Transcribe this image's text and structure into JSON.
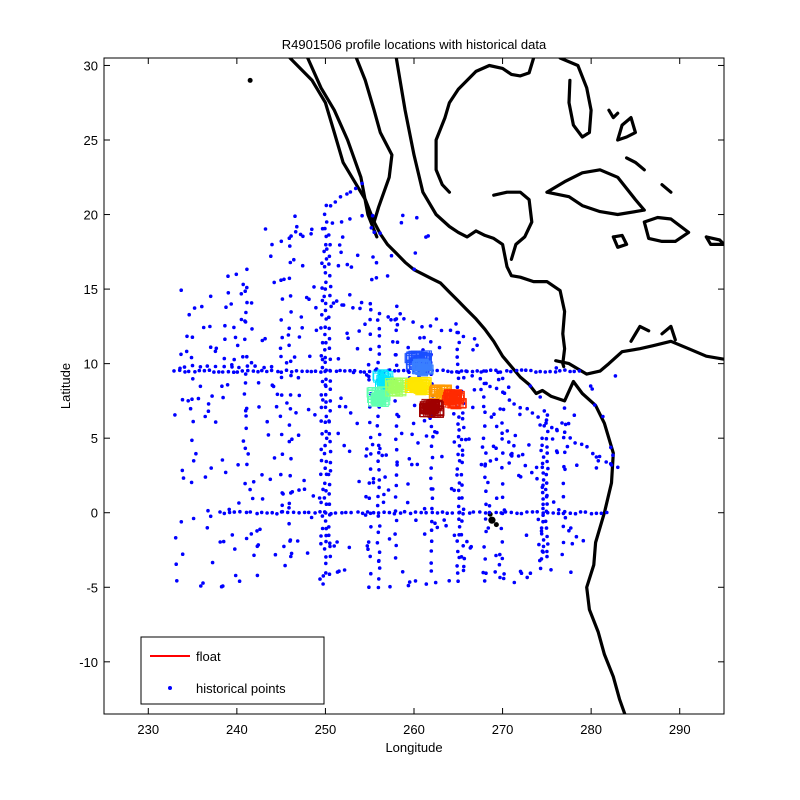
{
  "chart_data": {
    "type": "scatter",
    "title": "R4901506 profile locations with historical data",
    "xlabel": "Longitude",
    "ylabel": "Latitude",
    "xlim": [
      225,
      295
    ],
    "ylim": [
      -13.5,
      30.5
    ],
    "xticks": [
      230,
      240,
      250,
      260,
      270,
      280,
      290
    ],
    "yticks": [
      -10,
      -5,
      0,
      5,
      10,
      15,
      20,
      25,
      30
    ],
    "grid": false,
    "legend": {
      "placement": "bottom-left",
      "entries": [
        {
          "label": "float",
          "marker": "line",
          "color": "#ff0000"
        },
        {
          "label": "historical points",
          "marker": "dot",
          "color": "#0000ff"
        }
      ]
    },
    "coastline_color": "#000000",
    "historical_color": "#0000ff",
    "series": [
      {
        "kind": "historical",
        "color": "#0000ff",
        "transects": [
          {
            "lon": 250,
            "lat_from": -4,
            "lat_to": 20,
            "step": 0.5
          },
          {
            "lon": 250.5,
            "lat_from": -3,
            "lat_to": 19,
            "step": 0.7
          },
          {
            "lon": 249.6,
            "lat_from": -2,
            "lat_to": 16,
            "step": 0.9
          },
          {
            "lon": 256,
            "lat_from": -5,
            "lat_to": 13,
            "step": 0.6
          },
          {
            "lon": 258,
            "lat_from": -3,
            "lat_to": 14,
            "step": 0.8
          },
          {
            "lon": 265,
            "lat_from": -4,
            "lat_to": 12,
            "step": 0.5
          },
          {
            "lon": 265.5,
            "lat_from": -3,
            "lat_to": 9,
            "step": 0.8
          },
          {
            "lon": 262,
            "lat_from": -4,
            "lat_to": 12,
            "step": 0.7
          },
          {
            "lon": 274.5,
            "lat_from": -3,
            "lat_to": 5,
            "step": 0.4
          },
          {
            "lon": 275,
            "lat_from": -3,
            "lat_to": 6,
            "step": 0.5
          },
          {
            "lon": 246,
            "lat_from": -3,
            "lat_to": 18,
            "step": 1.1
          },
          {
            "lon": 241,
            "lat_from": 2,
            "lat_to": 17,
            "step": 1.2
          },
          {
            "lon": 245,
            "lat_from": 0,
            "lat_to": 16,
            "step": 1.3
          },
          {
            "lon": 235,
            "lat_from": 2,
            "lat_to": 12,
            "step": 1.4
          },
          {
            "lon": 255,
            "lat_from": -5,
            "lat_to": 14,
            "step": 1.0
          },
          {
            "lon": 268,
            "lat_from": -4,
            "lat_to": 10,
            "step": 0.9
          },
          {
            "lon": 270,
            "lat_from": -3,
            "lat_to": 9,
            "step": 1.0
          },
          {
            "lon": 277,
            "lat_from": -2,
            "lat_to": 7,
            "step": 1.0
          },
          {
            "lat": 9.5,
            "lon_from": 233,
            "lon_to": 279,
            "step": 0.55
          },
          {
            "lat": 0,
            "lon_from": 238,
            "lon_to": 282,
            "step": 0.6
          },
          {
            "lat": 9.8,
            "lon_from": 234,
            "lon_to": 244,
            "step": 0.9
          }
        ],
        "diagonals": [
          {
            "from": [
              250,
              20.5
            ],
            "to": [
              254,
              22
            ],
            "n": 8
          },
          {
            "from": [
              244,
              18
            ],
            "to": [
              254,
              20
            ],
            "n": 10
          },
          {
            "from": [
              266,
              9.5
            ],
            "to": [
              283,
              3
            ],
            "n": 26
          },
          {
            "from": [
              268,
              7
            ],
            "to": [
              279,
              -2
            ],
            "n": 18
          },
          {
            "from": [
              252,
              14
            ],
            "to": [
              265,
              12
            ],
            "n": 14
          }
        ],
        "scatter_box": {
          "lon_min": 233,
          "lon_max": 283,
          "lat_min": -5,
          "lat_max": 20,
          "n": 520
        }
      },
      {
        "kind": "float",
        "name": "float",
        "color_scale": [
          "#00007f",
          "#0000ff",
          "#007fff",
          "#00ffff",
          "#7fff7f",
          "#ffff00",
          "#ff7f00",
          "#ff0000",
          "#7f0000"
        ],
        "clusters": [
          {
            "lon": 260.5,
            "lat": 10.2,
            "spread": [
              1.6,
              0.6
            ],
            "n": 40,
            "color": "#1a4fff"
          },
          {
            "lon": 261.0,
            "lat": 9.7,
            "spread": [
              1.2,
              0.5
            ],
            "n": 25,
            "color": "#3a7fff"
          },
          {
            "lon": 256.5,
            "lat": 8.8,
            "spread": [
              1.0,
              0.9
            ],
            "n": 30,
            "color": "#00e5ff"
          },
          {
            "lon": 256.0,
            "lat": 7.8,
            "spread": [
              1.3,
              0.7
            ],
            "n": 35,
            "color": "#60ffb0"
          },
          {
            "lon": 258.0,
            "lat": 8.4,
            "spread": [
              1.2,
              0.6
            ],
            "n": 25,
            "color": "#a0ff60"
          },
          {
            "lon": 260.5,
            "lat": 8.5,
            "spread": [
              1.6,
              0.5
            ],
            "n": 45,
            "color": "#ffe600"
          },
          {
            "lon": 263.0,
            "lat": 8.0,
            "spread": [
              1.2,
              0.5
            ],
            "n": 25,
            "color": "#ff9a00"
          },
          {
            "lon": 264.5,
            "lat": 7.6,
            "spread": [
              1.4,
              0.6
            ],
            "n": 40,
            "color": "#ff2a00"
          },
          {
            "lon": 262.0,
            "lat": 7.0,
            "spread": [
              1.4,
              0.5
            ],
            "n": 45,
            "color": "#a00000"
          }
        ]
      }
    ],
    "coastlines": [
      [
        [
          246,
          30.5
        ],
        [
          248.5,
          29
        ],
        [
          250,
          27.5
        ],
        [
          251,
          25.5
        ],
        [
          252,
          23.5
        ],
        [
          253,
          22.5
        ],
        [
          254.5,
          21
        ],
        [
          255.5,
          19.5
        ],
        [
          256.2,
          18.7
        ],
        [
          257,
          18
        ],
        [
          258,
          17.4
        ],
        [
          259,
          16.8
        ],
        [
          260,
          16.3
        ],
        [
          261,
          16
        ],
        [
          262,
          15.7
        ],
        [
          263,
          15.4
        ],
        [
          264,
          14.8
        ],
        [
          265,
          14.2
        ],
        [
          266,
          13.6
        ],
        [
          267,
          13
        ],
        [
          268,
          12.3
        ],
        [
          269,
          11.5
        ],
        [
          270,
          10.5
        ],
        [
          271,
          9.8
        ],
        [
          272,
          9.1
        ],
        [
          273,
          8.6
        ],
        [
          273.8,
          8
        ],
        [
          274.5,
          8.2
        ],
        [
          275.5,
          7.8
        ],
        [
          277,
          7.5
        ],
        [
          278,
          8.8
        ],
        [
          279,
          8
        ],
        [
          280.5,
          7.2
        ],
        [
          281.5,
          6
        ],
        [
          282.5,
          4
        ],
        [
          282.3,
          2
        ],
        [
          281.5,
          0
        ],
        [
          280.5,
          -2
        ],
        [
          280.3,
          -3.5
        ],
        [
          279.5,
          -5
        ],
        [
          279.8,
          -6.5
        ],
        [
          280.8,
          -8
        ],
        [
          281.5,
          -9.5
        ],
        [
          282.5,
          -11
        ],
        [
          283.2,
          -12.5
        ],
        [
          283.8,
          -13.5
        ]
      ],
      [
        [
          255.8,
          18.5
        ],
        [
          254.8,
          20
        ],
        [
          254,
          22.5
        ],
        [
          252.5,
          25
        ],
        [
          251,
          27
        ],
        [
          249.5,
          28.5
        ],
        [
          248,
          30.5
        ]
      ],
      [
        [
          253.5,
          30.5
        ],
        [
          254.5,
          29
        ],
        [
          255.5,
          27
        ],
        [
          256.2,
          25.5
        ],
        [
          257.5,
          24
        ],
        [
          257.2,
          22.5
        ],
        [
          256,
          20.5
        ],
        [
          255.5,
          19.5
        ]
      ],
      [
        [
          258,
          30.5
        ],
        [
          259,
          27
        ],
        [
          260,
          24
        ],
        [
          261,
          21.5
        ],
        [
          262.5,
          20
        ],
        [
          264,
          19.2
        ],
        [
          265,
          18.8
        ],
        [
          266,
          18.5
        ],
        [
          267,
          18.9
        ],
        [
          268,
          18.6
        ],
        [
          269,
          18.4
        ],
        [
          270,
          18
        ],
        [
          270.5,
          16.5
        ],
        [
          271,
          15.9
        ],
        [
          272,
          15.8
        ],
        [
          273.5,
          15.5
        ],
        [
          275,
          15.5
        ],
        [
          276.5,
          14.9
        ],
        [
          277,
          13.5
        ],
        [
          276.8,
          12
        ],
        [
          277,
          11
        ],
        [
          276.8,
          10
        ],
        [
          276.9,
          9.8
        ]
      ],
      [
        [
          269,
          21.3
        ],
        [
          270.5,
          21.5
        ],
        [
          272,
          21.5
        ],
        [
          273,
          21
        ],
        [
          273.3,
          19.5
        ],
        [
          272.5,
          18.5
        ],
        [
          271.5,
          18
        ],
        [
          271,
          17
        ]
      ],
      [
        [
          273.5,
          30.5
        ],
        [
          273,
          29.5
        ],
        [
          272,
          29.3
        ],
        [
          271,
          29.4
        ],
        [
          270,
          29.8
        ],
        [
          268.5,
          30
        ],
        [
          267,
          29.6
        ],
        [
          266,
          29
        ],
        [
          265,
          28.4
        ],
        [
          264,
          27.5
        ],
        [
          263.5,
          26.5
        ],
        [
          262.5,
          25
        ],
        [
          262.5,
          23
        ],
        [
          263.2,
          22
        ],
        [
          264,
          21.5
        ]
      ],
      [
        [
          275,
          21.5
        ],
        [
          277,
          22.2
        ],
        [
          279,
          22.8
        ],
        [
          281,
          23
        ],
        [
          283,
          22.5
        ],
        [
          285,
          21
        ],
        [
          286,
          20.3
        ],
        [
          283,
          20
        ],
        [
          281,
          20.2
        ],
        [
          279,
          20.6
        ],
        [
          277.5,
          21.2
        ],
        [
          275,
          21.5
        ]
      ],
      [
        [
          282.5,
          18.5
        ],
        [
          283.5,
          18.6
        ],
        [
          284,
          18
        ],
        [
          283,
          17.8
        ],
        [
          282.5,
          18.5
        ]
      ],
      [
        [
          286,
          19.5
        ],
        [
          287.5,
          19.8
        ],
        [
          289,
          19.7
        ],
        [
          291,
          18.8
        ],
        [
          289.5,
          18.2
        ],
        [
          288,
          18.2
        ],
        [
          286.5,
          18.4
        ],
        [
          286,
          19.5
        ]
      ],
      [
        [
          293,
          18.5
        ],
        [
          294.5,
          18.3
        ],
        [
          295,
          18
        ],
        [
          293.5,
          18
        ],
        [
          293,
          18.5
        ]
      ],
      [
        [
          283,
          25
        ],
        [
          283.5,
          26
        ],
        [
          284.5,
          26.5
        ],
        [
          285,
          25.5
        ],
        [
          284,
          25.2
        ],
        [
          283,
          25
        ]
      ],
      [
        [
          276.5,
          30.5
        ],
        [
          278.5,
          30
        ],
        [
          279.5,
          28.5
        ],
        [
          280,
          27
        ],
        [
          279.8,
          25.5
        ],
        [
          279,
          25.2
        ],
        [
          278,
          26
        ],
        [
          277.5,
          27.5
        ],
        [
          277.6,
          29
        ]
      ],
      [
        [
          282,
          27
        ],
        [
          282.5,
          26.5
        ],
        [
          283,
          26.8
        ]
      ],
      [
        [
          284,
          23.8
        ],
        [
          285,
          23.5
        ],
        [
          286,
          23
        ]
      ],
      [
        [
          288,
          22
        ],
        [
          289,
          21.5
        ]
      ],
      [
        [
          276,
          10.2
        ],
        [
          277.5,
          10
        ],
        [
          279.5,
          9.3
        ],
        [
          281,
          9.5
        ],
        [
          282,
          10
        ],
        [
          283.5,
          10.8
        ],
        [
          285.5,
          11
        ],
        [
          287,
          11.2
        ],
        [
          289,
          11.5
        ],
        [
          291,
          11
        ],
        [
          293,
          10.5
        ],
        [
          295,
          10.3
        ]
      ],
      [
        [
          284.5,
          11.5
        ],
        [
          285.5,
          12.5
        ],
        [
          286.5,
          12.2
        ]
      ],
      [
        [
          288,
          12
        ],
        [
          289,
          12.5
        ],
        [
          289.5,
          11.6
        ]
      ]
    ],
    "islands": [
      {
        "lon": 241.5,
        "lat": 29,
        "r": 0.25
      },
      {
        "lon": 268.8,
        "lat": -0.5,
        "r": 0.45
      },
      {
        "lon": 269.3,
        "lat": -0.8,
        "r": 0.3
      },
      {
        "lon": 268.6,
        "lat": -0.1,
        "r": 0.25
      }
    ]
  }
}
